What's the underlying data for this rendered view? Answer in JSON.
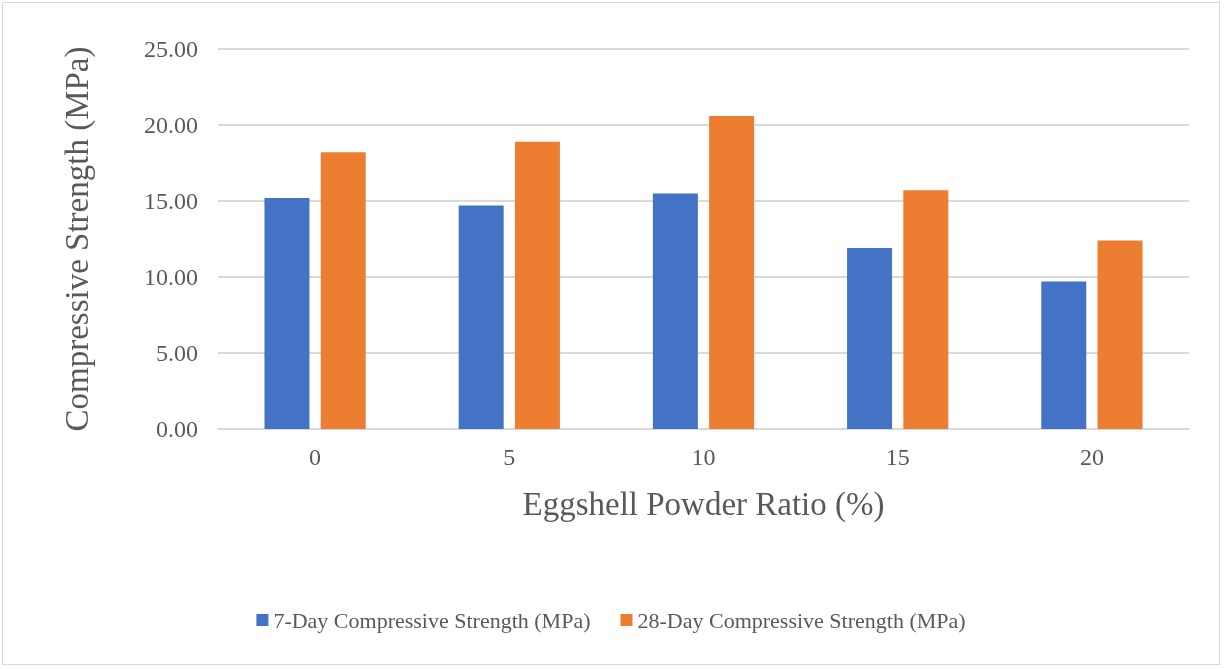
{
  "chart_data": {
    "type": "bar",
    "xlabel": "Eggshell Powder Ratio (%)",
    "ylabel": "Compressive Strength (MPa)",
    "categories": [
      "0",
      "5",
      "10",
      "15",
      "20"
    ],
    "series": [
      {
        "name": "7-Day Compressive Strength (MPa)",
        "color": "#4472c4",
        "values": [
          15.2,
          14.7,
          15.5,
          11.9,
          9.7
        ]
      },
      {
        "name": "28-Day Compressive Strength (MPa)",
        "color": "#ed7d31",
        "values": [
          18.2,
          18.9,
          20.6,
          15.7,
          12.4
        ]
      }
    ],
    "ylim": [
      0,
      25
    ],
    "yticks": [
      {
        "value": 0,
        "label": "0.00"
      },
      {
        "value": 5,
        "label": "5.00"
      },
      {
        "value": 10,
        "label": "10.00"
      },
      {
        "value": 15,
        "label": "15.00"
      },
      {
        "value": 20,
        "label": "20.00"
      },
      {
        "value": 25,
        "label": "25.00"
      }
    ],
    "grid": "y",
    "legend": "bottom"
  }
}
